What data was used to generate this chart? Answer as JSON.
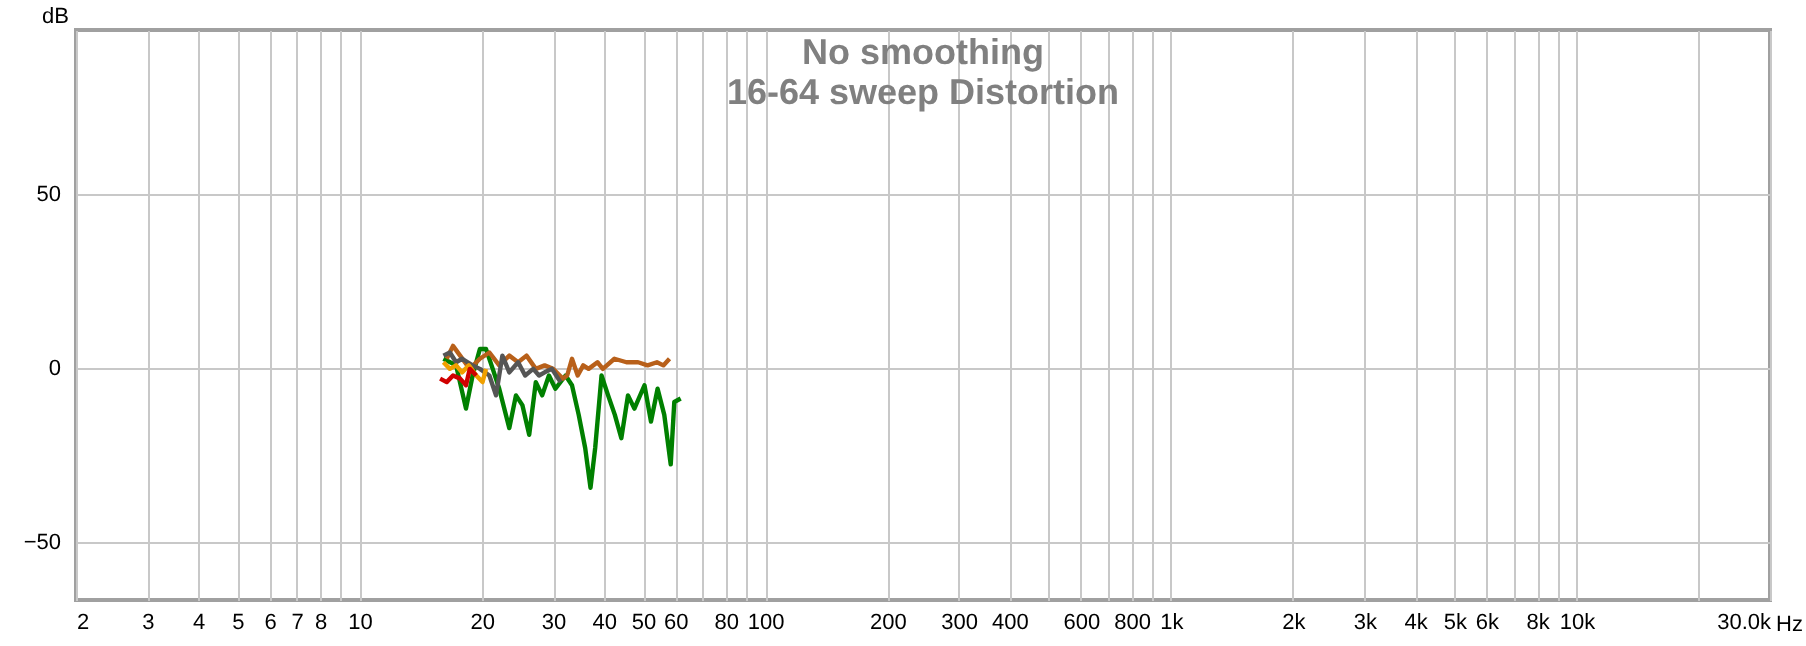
{
  "chart_data": {
    "type": "line",
    "title": "No smoothing",
    "subtitle": "16-64 sweep Distortion",
    "xlabel": "Hz",
    "ylabel": "dB",
    "log": "x",
    "grid": true,
    "marker": "none",
    "line_style": "solid",
    "legend": false,
    "xlim": [
      2,
      30000
    ],
    "ylim": [
      -66.5,
      97
    ],
    "yticks": [
      -50,
      0,
      50
    ],
    "xticks": [
      2,
      3,
      4,
      5,
      6,
      7,
      8,
      {
        "value": 9,
        "label": null
      },
      10,
      20,
      30,
      40,
      50,
      60,
      {
        "value": 70,
        "label": null
      },
      80,
      {
        "value": 90,
        "label": null
      },
      100,
      200,
      300,
      400,
      {
        "value": 500,
        "label": null
      },
      600,
      {
        "value": 700,
        "label": null
      },
      800,
      {
        "value": 900,
        "label": null
      },
      {
        "value": 1000,
        "label": "1k"
      },
      {
        "value": 2000,
        "label": "2k"
      },
      {
        "value": 3000,
        "label": "3k"
      },
      {
        "value": 4000,
        "label": "4k"
      },
      {
        "value": 5000,
        "label": "5k"
      },
      {
        "value": 6000,
        "label": "6k"
      },
      {
        "value": 7000,
        "label": null
      },
      {
        "value": 8000,
        "label": "8k"
      },
      {
        "value": 9000,
        "label": null
      },
      {
        "value": 10000,
        "label": "10k"
      },
      {
        "value": 20000,
        "label": null
      },
      {
        "value": 30000,
        "label": "30.0k"
      }
    ],
    "series": [
      {
        "color": "#008000",
        "x": [
          16.1,
          17.3,
          18.3,
          19.0,
          19.8,
          20.5,
          21.3,
          22.1,
          23.4,
          24.3,
          25.2,
          26.2,
          27.2,
          28.2,
          29.3,
          30.4,
          32.2,
          33.4,
          34.7,
          36.0,
          37.1,
          38.1,
          39.5,
          41.0,
          42.6,
          44.2,
          45.9,
          47.6,
          50.4,
          52.3,
          54.3,
          56.4,
          58.5,
          59.7,
          61.9
        ],
        "values": [
          2.7,
          0.8,
          -11.6,
          -2.1,
          5.5,
          5.5,
          -0.2,
          -5.9,
          -17.2,
          -7.8,
          -10.6,
          -19.1,
          -4,
          -7.8,
          -2.1,
          -5.9,
          -2.1,
          -4.9,
          -13.4,
          -22.9,
          -34.3,
          -22.9,
          -2.1,
          -7.8,
          -13.4,
          -20.1,
          -7.8,
          -11.6,
          -4.9,
          -15.3,
          -5.9,
          -13.4,
          -27.6,
          -9.7,
          -8.7
        ]
      },
      {
        "color": "#b8601a",
        "x": [
          16.4,
          17.0,
          17.7,
          18.7,
          19.8,
          20.9,
          22.1,
          23.4,
          24.6,
          25.8,
          27.2,
          28.6,
          30.0,
          31.7,
          32.5,
          33.4,
          34.5,
          35.6,
          36.7,
          38.6,
          39.8,
          42.5,
          45.5,
          48.6,
          51.3,
          54.1,
          56.1,
          58.1
        ],
        "values": [
          2.7,
          6.4,
          3.6,
          -0.2,
          2.7,
          4.5,
          0.8,
          3.6,
          1.7,
          3.6,
          -0.2,
          0.8,
          -0.2,
          -3.0,
          -2.1,
          2.7,
          -2.1,
          0.8,
          -0.2,
          1.7,
          -0.2,
          2.7,
          1.7,
          1.7,
          0.8,
          1.7,
          0.8,
          2.7
        ]
      },
      {
        "color": "#555555",
        "x": [
          16.1,
          16.7,
          17.3,
          17.9,
          19.0,
          19.8,
          20.9,
          21.7,
          22.5,
          23.4,
          24.6,
          25.6,
          26.8,
          27.7,
          28.6,
          29.8,
          31.3
        ],
        "values": [
          3.6,
          4.5,
          1.7,
          2.7,
          0.8,
          -0.2,
          -2.1,
          -7.8,
          3.6,
          -1.2,
          1.7,
          -2.1,
          -0.2,
          -2.1,
          -1.2,
          -0.2,
          -4.0
        ]
      },
      {
        "color": "#f0a000",
        "x": [
          16.1,
          16.7,
          17.3,
          17.9,
          18.6,
          19.4,
          20.1,
          20.5
        ],
        "values": [
          1.7,
          -0.2,
          0.8,
          -1.2,
          0.8,
          -2.1,
          -4.0,
          -0.2
        ]
      },
      {
        "color": "#d00000",
        "x": [
          15.8,
          16.4,
          17.0,
          17.7,
          18.3,
          18.7,
          19.4
        ],
        "values": [
          -3.0,
          -4.0,
          -2.1,
          -3.0,
          -4.9,
          -0.2,
          -2.1
        ]
      }
    ]
  }
}
